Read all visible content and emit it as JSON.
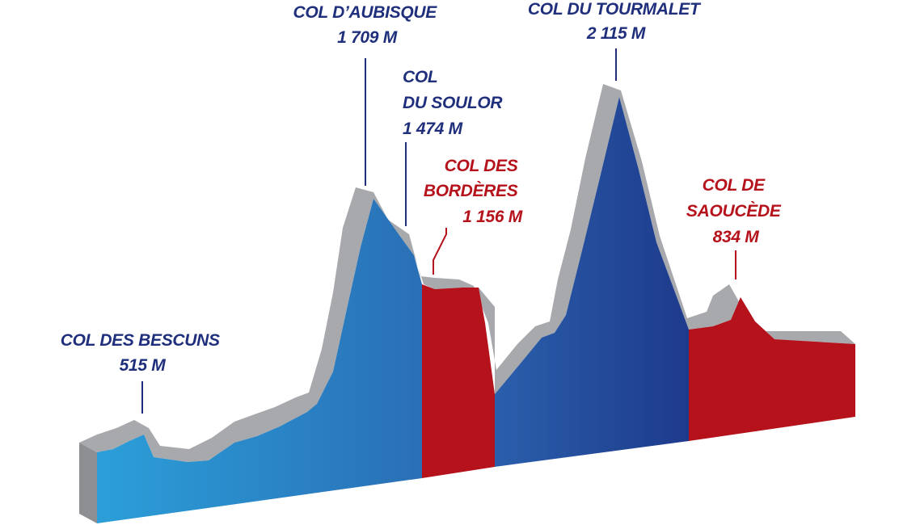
{
  "colors": {
    "blue_light": "#2b9ad6",
    "blue_mid": "#2d79be",
    "blue_dark": "#1f3b8d",
    "red": "#b5121b",
    "grey_top": "#a8a9ad",
    "grey_side": "#8e8f93",
    "label_blue": "#1f2f7c",
    "label_red": "#b5121b"
  },
  "climbs": [
    {
      "id": "bescuns",
      "lines": [
        "COL DES BESCUNS",
        "515 M"
      ],
      "color": "blue"
    },
    {
      "id": "aubisque",
      "lines": [
        "COL D’AUBISQUE",
        "1 709 M"
      ],
      "color": "blue"
    },
    {
      "id": "soulor",
      "lines": [
        "COL",
        "DU SOULOR",
        "1 474 M"
      ],
      "color": "blue"
    },
    {
      "id": "borderes",
      "lines": [
        "COL DES",
        "BORDÈRES",
        "1 156 M"
      ],
      "color": "red"
    },
    {
      "id": "tourmalet",
      "lines": [
        "COL DU TOURMALET",
        "2 115 M"
      ],
      "color": "blue"
    },
    {
      "id": "saoucede",
      "lines": [
        "COL DE",
        "SAOUCÈDE",
        "834 M"
      ],
      "color": "red"
    }
  ]
}
